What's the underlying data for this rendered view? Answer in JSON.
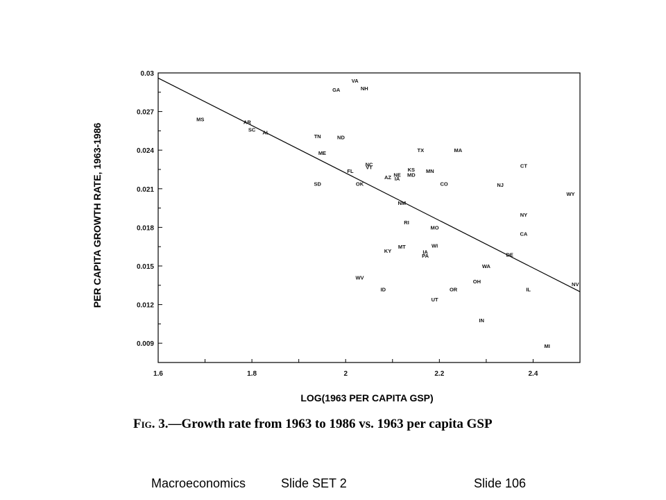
{
  "chart_data": {
    "type": "scatter",
    "xlabel": "LOG(1963 PER CAPITA GSP)",
    "ylabel": "PER CAPITA GROWTH RATE, 1963-1986",
    "xlim": [
      1.6,
      2.5
    ],
    "ylim": [
      0.0075,
      0.03
    ],
    "x_ticks": [
      1.6,
      1.8,
      2,
      2.2,
      2.4
    ],
    "x_tick_labels": [
      "1.6",
      "1.8",
      "2",
      "2.2",
      "2.4"
    ],
    "y_ticks": [
      0.03,
      0.027,
      0.024,
      0.021,
      0.018,
      0.015,
      0.012,
      0.009
    ],
    "y_tick_labels": [
      "0.03",
      "0.027",
      "0.024",
      "0.021",
      "0.018",
      "0.015",
      "0.012",
      "0.009"
    ],
    "fit_line": {
      "x": [
        1.6,
        2.5
      ],
      "y": [
        0.0296,
        0.013
      ]
    },
    "points": [
      {
        "label": "VA",
        "x": 2.02,
        "y": 0.0294
      },
      {
        "label": "NH",
        "x": 2.04,
        "y": 0.0288
      },
      {
        "label": "GA",
        "x": 1.98,
        "y": 0.0287
      },
      {
        "label": "MS",
        "x": 1.69,
        "y": 0.0264
      },
      {
        "label": "AR",
        "x": 1.79,
        "y": 0.0262
      },
      {
        "label": "SC",
        "x": 1.8,
        "y": 0.0256
      },
      {
        "label": "AL",
        "x": 1.83,
        "y": 0.0254
      },
      {
        "label": "TN",
        "x": 1.94,
        "y": 0.0251
      },
      {
        "label": "ND",
        "x": 1.99,
        "y": 0.025
      },
      {
        "label": "TX",
        "x": 2.16,
        "y": 0.024
      },
      {
        "label": "MA",
        "x": 2.24,
        "y": 0.024
      },
      {
        "label": "ME",
        "x": 1.95,
        "y": 0.0238
      },
      {
        "label": "CT",
        "x": 2.38,
        "y": 0.0228
      },
      {
        "label": "NC",
        "x": 2.05,
        "y": 0.0229
      },
      {
        "label": "VT",
        "x": 2.05,
        "y": 0.0227
      },
      {
        "label": "KS",
        "x": 2.14,
        "y": 0.0225
      },
      {
        "label": "FL",
        "x": 2.01,
        "y": 0.0224
      },
      {
        "label": "MN",
        "x": 2.18,
        "y": 0.0224
      },
      {
        "label": "NE",
        "x": 2.11,
        "y": 0.0221
      },
      {
        "label": "MD",
        "x": 2.14,
        "y": 0.0221
      },
      {
        "label": "AZ",
        "x": 2.09,
        "y": 0.0219
      },
      {
        "label": "IA",
        "x": 2.11,
        "y": 0.0218
      },
      {
        "label": "SD",
        "x": 1.94,
        "y": 0.0214
      },
      {
        "label": "OK",
        "x": 2.03,
        "y": 0.0214
      },
      {
        "label": "CO",
        "x": 2.21,
        "y": 0.0214
      },
      {
        "label": "NJ",
        "x": 2.33,
        "y": 0.0213
      },
      {
        "label": "WY",
        "x": 2.48,
        "y": 0.0206
      },
      {
        "label": "NM",
        "x": 2.12,
        "y": 0.0199
      },
      {
        "label": "NY",
        "x": 2.38,
        "y": 0.019
      },
      {
        "label": "RI",
        "x": 2.13,
        "y": 0.0184
      },
      {
        "label": "MO",
        "x": 2.19,
        "y": 0.018
      },
      {
        "label": "CA",
        "x": 2.38,
        "y": 0.0175
      },
      {
        "label": "WI",
        "x": 2.19,
        "y": 0.0166
      },
      {
        "label": "MT",
        "x": 2.12,
        "y": 0.0165
      },
      {
        "label": "KY",
        "x": 2.09,
        "y": 0.0162
      },
      {
        "label": "IA",
        "x": 2.17,
        "y": 0.0161
      },
      {
        "label": "DE",
        "x": 2.35,
        "y": 0.0159
      },
      {
        "label": "PA",
        "x": 2.17,
        "y": 0.0158
      },
      {
        "label": "WA",
        "x": 2.3,
        "y": 0.015
      },
      {
        "label": "WV",
        "x": 2.03,
        "y": 0.0141
      },
      {
        "label": "OH",
        "x": 2.28,
        "y": 0.0138
      },
      {
        "label": "NV",
        "x": 2.49,
        "y": 0.0136
      },
      {
        "label": "ID",
        "x": 2.08,
        "y": 0.0132
      },
      {
        "label": "OR",
        "x": 2.23,
        "y": 0.0132
      },
      {
        "label": "IL",
        "x": 2.39,
        "y": 0.0132
      },
      {
        "label": "UT",
        "x": 2.19,
        "y": 0.0124
      },
      {
        "label": "IN",
        "x": 2.29,
        "y": 0.0108
      },
      {
        "label": "MI",
        "x": 2.43,
        "y": 0.0088
      }
    ]
  },
  "caption": {
    "fig_label": "Fig. 3.",
    "text": "—Growth rate from 1963 to 1986 vs. 1963 per capita GSP"
  },
  "footer": {
    "course": "Macroeconomics",
    "set": "Slide SET 2",
    "slide": "Slide 106"
  }
}
